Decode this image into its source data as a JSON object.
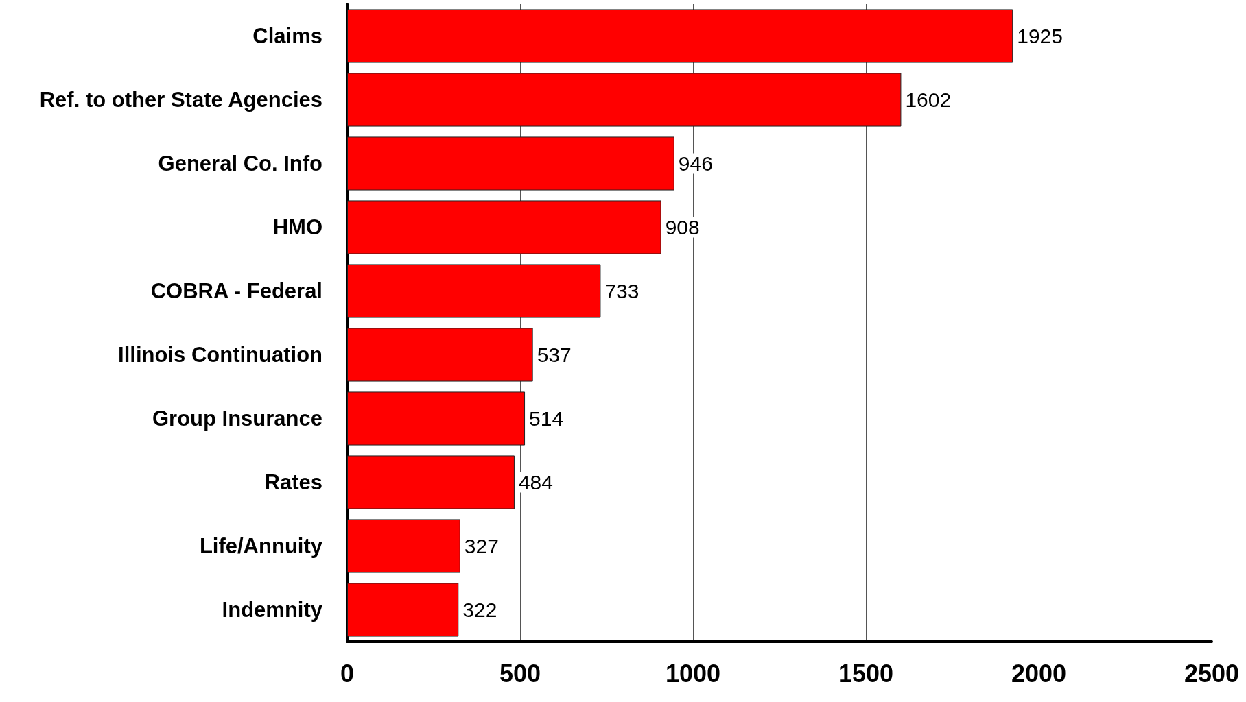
{
  "chart_data": {
    "type": "bar",
    "orientation": "horizontal",
    "categories": [
      "Claims",
      "Ref. to other State Agencies",
      "General Co. Info",
      "HMO",
      "COBRA - Federal",
      "Illinois Continuation",
      "Group Insurance",
      "Rates",
      "Life/Annuity",
      "Indemnity"
    ],
    "values": [
      1925,
      1602,
      946,
      908,
      733,
      537,
      514,
      484,
      327,
      322
    ],
    "color": "#ff0000",
    "xlim": [
      0,
      2500
    ],
    "xticks": [
      0,
      500,
      1000,
      1500,
      2000,
      2500
    ],
    "grid": "x",
    "data_labels": true
  }
}
